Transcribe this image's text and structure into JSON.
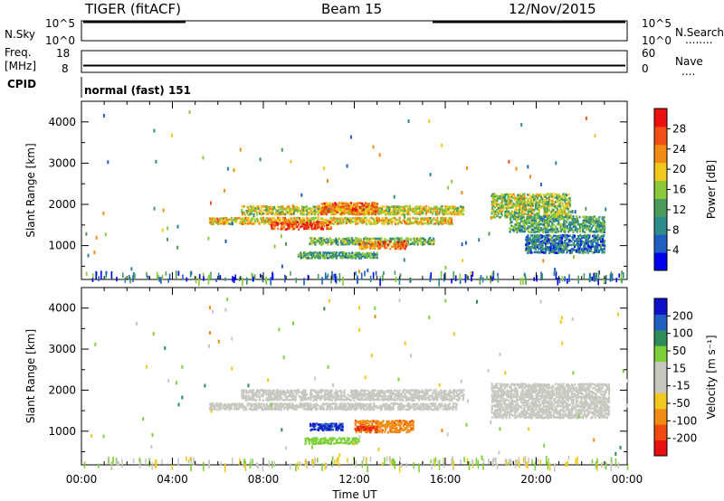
{
  "header": {
    "title": "TIGER (fitACF)",
    "beam": "Beam 15",
    "date": "12/Nov/2015"
  },
  "strips": {
    "nsky_label": "N.Sky",
    "nsky_ticks": [
      "10^5",
      "10^0"
    ],
    "nsearch_label": "N.Search",
    "nsearch_dots": "........",
    "freq_label": "Freq.",
    "freq_unit": "[MHz]",
    "freq_ticks": [
      "18",
      "8"
    ],
    "nave_ticks": [
      "60",
      "0"
    ],
    "nave_label": "Nave",
    "nave_dots": "....",
    "cpid_label": "CPID",
    "cpid_text": "normal (fast) 151"
  },
  "colors": {
    "power": [
      "#0000ee",
      "#1f5fbf",
      "#2e8b8b",
      "#4c9a5a",
      "#8cc83c",
      "#f0c81e",
      "#f08c14",
      "#f05014",
      "#ee1010"
    ],
    "velocity": [
      "#e81010",
      "#f04a10",
      "#f08c14",
      "#f0c81e",
      "#c8c8c0",
      "#c8c8c0",
      "#7ed03a",
      "#2e8b5a",
      "#1e5fbf",
      "#1010c8"
    ]
  },
  "chart_data": [
    {
      "type": "heatmap",
      "panel": "power",
      "title": "",
      "xlabel": "",
      "ylabel": "Slant Range [km]",
      "x_range_hours": [
        0,
        24
      ],
      "ylim": [
        180,
        4500
      ],
      "y_ticks": [
        1000,
        2000,
        3000,
        4000
      ],
      "y_tick_labels": [
        "1000",
        "2000",
        "3000",
        "4000"
      ],
      "colorbar": {
        "label": "Power [dB]",
        "range": [
          0,
          32
        ],
        "tick_values": [
          4,
          8,
          12,
          16,
          20,
          24,
          28
        ],
        "tick_labels": [
          "4",
          "8",
          "12",
          "16",
          "20",
          "24",
          "28"
        ]
      },
      "regions": [
        {
          "t": [
            5.6,
            16.3
          ],
          "r": [
            1550,
            1720
          ],
          "value": 20
        },
        {
          "t": [
            8.3,
            11.0
          ],
          "r": [
            1420,
            1620
          ],
          "value": 27
        },
        {
          "t": [
            7.0,
            16.8
          ],
          "r": [
            1780,
            2000
          ],
          "value": 18
        },
        {
          "t": [
            10.5,
            13.0
          ],
          "r": [
            1780,
            2080
          ],
          "value": 24
        },
        {
          "t": [
            10.0,
            15.5
          ],
          "r": [
            1050,
            1230
          ],
          "value": 14
        },
        {
          "t": [
            12.2,
            14.3
          ],
          "r": [
            950,
            1150
          ],
          "value": 24
        },
        {
          "t": [
            9.5,
            13.0
          ],
          "r": [
            720,
            880
          ],
          "value": 12
        },
        {
          "t": [
            18.0,
            21.5
          ],
          "r": [
            1700,
            2300
          ],
          "value": 16
        },
        {
          "t": [
            18.8,
            23.0
          ],
          "r": [
            1350,
            1750
          ],
          "value": 12
        },
        {
          "t": [
            19.5,
            23.0
          ],
          "r": [
            850,
            1300
          ],
          "value": 8
        }
      ]
    },
    {
      "type": "heatmap",
      "panel": "velocity",
      "title": "",
      "xlabel": "Time UT",
      "ylabel": "Slant Range [km]",
      "x_range_hours": [
        0,
        24
      ],
      "x_ticks": [
        0,
        4,
        8,
        12,
        16,
        20,
        24
      ],
      "x_tick_labels": [
        "00:00",
        "04:00",
        "08:00",
        "12:00",
        "16:00",
        "20:00",
        "00:00"
      ],
      "ylim": [
        180,
        4500
      ],
      "y_ticks": [
        1000,
        2000,
        3000,
        4000
      ],
      "y_tick_labels": [
        "1000",
        "2000",
        "3000",
        "4000"
      ],
      "colorbar": {
        "label": "Velocity [m s⁻¹]",
        "range": [
          -250,
          250
        ],
        "tick_labels": [
          "200",
          "100",
          "50",
          "15",
          "-15",
          "-50",
          "-100",
          "-200"
        ]
      },
      "regions": [
        {
          "t": [
            5.6,
            16.5
          ],
          "r": [
            1550,
            1720
          ],
          "value": 0
        },
        {
          "t": [
            7.0,
            16.8
          ],
          "r": [
            1780,
            2050
          ],
          "value": -5
        },
        {
          "t": [
            10.0,
            11.5
          ],
          "r": [
            1050,
            1230
          ],
          "value": 200
        },
        {
          "t": [
            12.0,
            14.6
          ],
          "r": [
            1000,
            1300
          ],
          "value": -80
        },
        {
          "t": [
            12.0,
            13.0
          ],
          "r": [
            1050,
            1150
          ],
          "value": -200
        },
        {
          "t": [
            9.8,
            12.2
          ],
          "r": [
            720,
            880
          ],
          "value": 30
        },
        {
          "t": [
            18.0,
            23.2
          ],
          "r": [
            1350,
            2200
          ],
          "value": 0
        }
      ]
    }
  ]
}
